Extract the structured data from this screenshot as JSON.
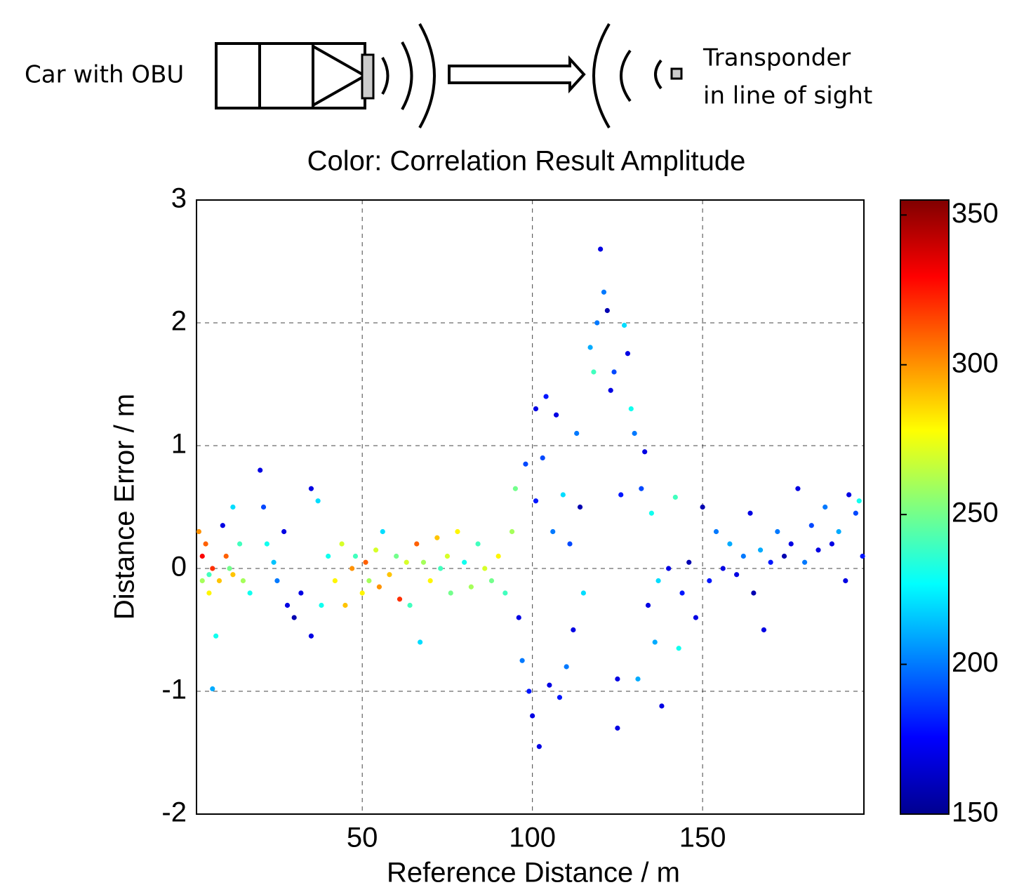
{
  "diagram": {
    "left_label": "Car with OBU",
    "right_label": [
      "Transponder",
      "in line of sight"
    ]
  },
  "chart_data": {
    "type": "scatter",
    "title": "Color: Correlation Result Amplitude",
    "x_label": "Reference Distance / m",
    "y_label": "Distance Error / m",
    "xlim": [
      1.3,
      197.4
    ],
    "xticks": [
      50,
      100,
      150
    ],
    "ylim": [
      -2,
      3
    ],
    "yticks": [
      -2,
      -1,
      0,
      1,
      2,
      3
    ],
    "clim": [
      150,
      355
    ],
    "cticks": [
      150,
      200,
      250,
      300,
      350
    ],
    "colormap": "jet",
    "grid": true,
    "x": [
      2,
      3,
      3,
      4,
      5,
      5,
      6,
      7,
      8,
      10,
      11,
      12,
      14,
      15,
      17,
      6,
      9,
      12,
      20,
      21,
      22,
      24,
      25,
      27,
      28,
      30,
      32,
      35,
      35,
      37,
      38,
      40,
      42,
      44,
      45,
      47,
      48,
      50,
      51,
      52,
      54,
      55,
      56,
      58,
      60,
      61,
      63,
      64,
      66,
      67,
      68,
      70,
      72,
      73,
      75,
      76,
      78,
      80,
      82,
      84,
      86,
      88,
      90,
      92,
      94,
      95,
      96,
      97,
      98,
      99,
      100,
      101,
      101,
      102,
      103,
      104,
      105,
      106,
      107,
      108,
      109,
      110,
      111,
      112,
      113,
      114,
      115,
      117,
      118,
      119,
      120,
      121,
      122,
      123,
      124,
      125,
      125,
      126,
      127,
      128,
      129,
      130,
      131,
      132,
      133,
      134,
      135,
      136,
      137,
      138,
      140,
      142,
      143,
      144,
      146,
      148,
      150,
      152,
      154,
      156,
      158,
      160,
      162,
      164,
      165,
      167,
      168,
      170,
      172,
      174,
      176,
      178,
      180,
      182,
      184,
      186,
      188,
      190,
      192,
      193,
      195,
      196,
      197
    ],
    "values": [
      0.3,
      0.1,
      -0.1,
      0.2,
      -0.05,
      -0.2,
      0,
      -0.55,
      -0.1,
      0.1,
      0,
      -0.05,
      0.2,
      -0.1,
      -0.2,
      -0.98,
      0.35,
      0.5,
      0.8,
      0.5,
      0.2,
      0.05,
      -0.1,
      0.3,
      -0.3,
      -0.4,
      -0.2,
      0.65,
      -0.55,
      0.55,
      -0.3,
      0.1,
      -0.1,
      0.2,
      -0.3,
      0,
      0.1,
      -0.2,
      0.05,
      -0.1,
      0.15,
      -0.15,
      0.3,
      -0.05,
      0.1,
      -0.25,
      0.05,
      -0.3,
      0.2,
      -0.6,
      0.05,
      -0.1,
      0.25,
      0,
      0.1,
      -0.2,
      0.3,
      0.05,
      -0.15,
      0.2,
      0,
      -0.1,
      0.1,
      -0.2,
      0.3,
      0.65,
      -0.4,
      -0.75,
      0.85,
      -1.0,
      -1.2,
      1.3,
      0.55,
      -1.45,
      0.9,
      1.4,
      -0.95,
      0.3,
      1.25,
      -1.05,
      0.6,
      -0.8,
      0.2,
      -0.5,
      1.1,
      0.5,
      -0.2,
      1.8,
      1.6,
      2.0,
      2.6,
      2.25,
      2.1,
      1.45,
      1.6,
      -1.3,
      -0.9,
      0.6,
      1.98,
      1.75,
      1.3,
      1.1,
      -0.9,
      0.65,
      0.95,
      -0.3,
      0.45,
      -0.6,
      -0.1,
      -1.12,
      0,
      0.58,
      -0.65,
      -0.2,
      0.05,
      -0.4,
      0.5,
      -0.1,
      0.3,
      0,
      0.2,
      -0.05,
      0.1,
      0.45,
      -0.2,
      0.15,
      -0.5,
      0.05,
      0.3,
      0.1,
      0.2,
      0.65,
      0.05,
      0.35,
      0.15,
      0.5,
      0.2,
      0.3,
      -0.1,
      0.6,
      0.45,
      0.55,
      0.1
    ],
    "amplitude": [
      300,
      330,
      260,
      310,
      240,
      280,
      320,
      230,
      290,
      310,
      250,
      290,
      240,
      260,
      230,
      210,
      170,
      220,
      170,
      190,
      230,
      215,
      200,
      170,
      170,
      160,
      170,
      170,
      170,
      220,
      230,
      230,
      280,
      270,
      290,
      300,
      240,
      280,
      310,
      260,
      270,
      300,
      220,
      290,
      250,
      320,
      270,
      240,
      310,
      220,
      260,
      280,
      290,
      240,
      270,
      250,
      280,
      230,
      260,
      240,
      270,
      250,
      280,
      240,
      260,
      250,
      170,
      200,
      190,
      180,
      170,
      170,
      180,
      170,
      190,
      180,
      170,
      200,
      170,
      180,
      220,
      200,
      190,
      170,
      200,
      160,
      220,
      210,
      240,
      200,
      170,
      200,
      160,
      170,
      190,
      170,
      170,
      180,
      220,
      170,
      230,
      200,
      210,
      190,
      170,
      170,
      230,
      210,
      220,
      170,
      170,
      240,
      230,
      180,
      160,
      170,
      160,
      180,
      200,
      170,
      210,
      170,
      200,
      170,
      160,
      210,
      170,
      180,
      200,
      160,
      170,
      170,
      200,
      190,
      170,
      200,
      170,
      210,
      170,
      170,
      190,
      230,
      180
    ]
  }
}
